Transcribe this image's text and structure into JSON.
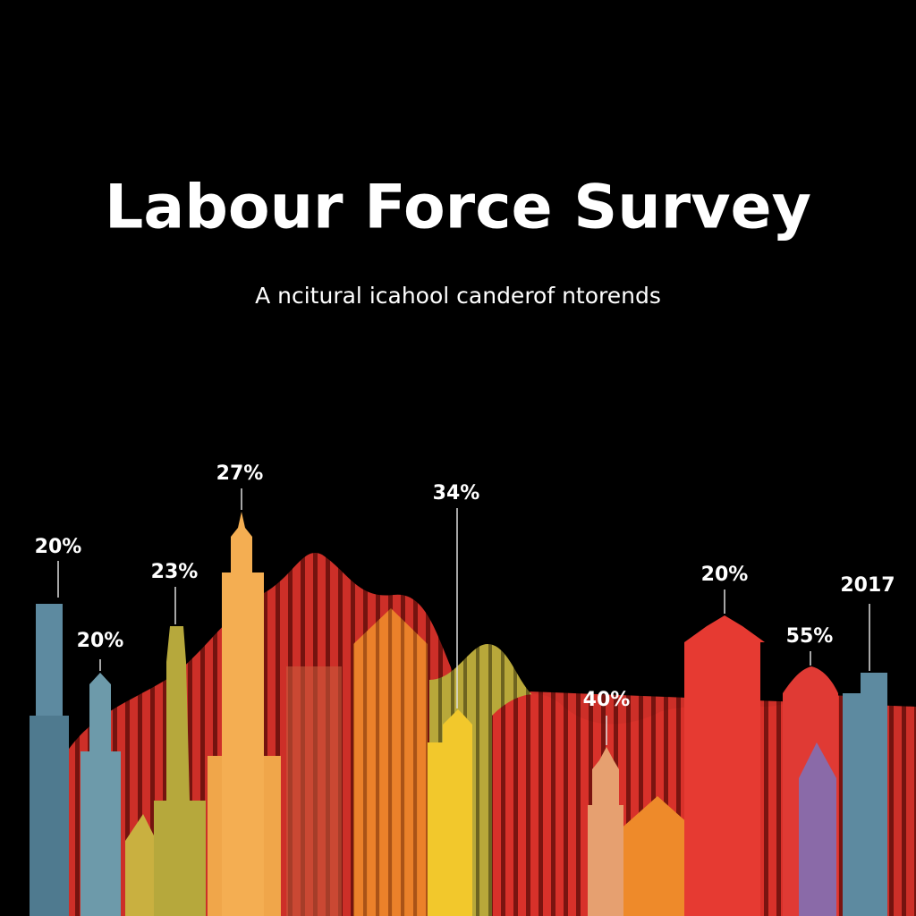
{
  "header": {
    "title": "Labour Force Survey",
    "subtitle": "A ncitural icahool canderof ntorends"
  },
  "callouts": [
    {
      "label": "20%"
    },
    {
      "label": "20%"
    },
    {
      "label": "23%"
    },
    {
      "label": "27%"
    },
    {
      "label": "34%"
    },
    {
      "label": "40%"
    },
    {
      "label": "20%"
    },
    {
      "label": "55%"
    },
    {
      "label": "2017"
    }
  ]
}
